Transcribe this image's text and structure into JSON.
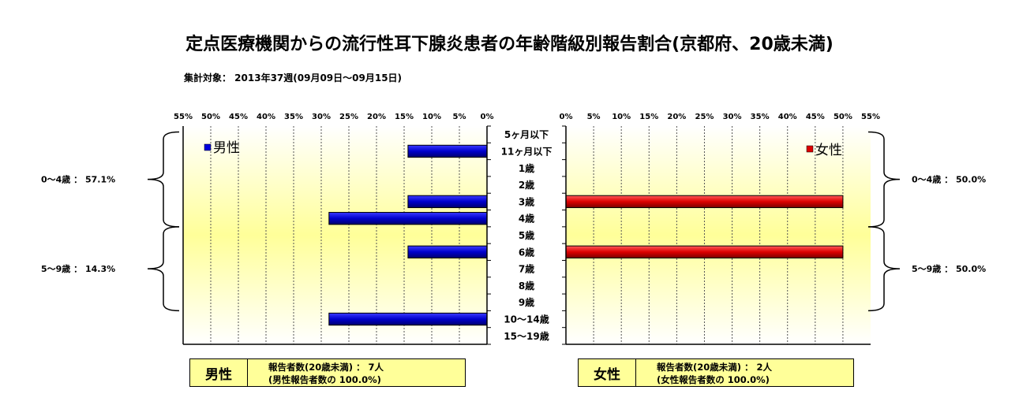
{
  "title": "定点医療機関からの流行性耳下腺炎患者の年齢階級別報告割合(京都府、20歳未満)",
  "subtitle": "集計対象： 2013年37週(09月09日～09月15日)",
  "chart_data": {
    "type": "bar",
    "orientation": "horizontal",
    "title": "定点医療機関からの流行性耳下腺炎患者の年齢階級別報告割合(京都府、20歳未満)",
    "subtitle": "集計対象： 2013年37週(09月09日～09月15日)",
    "categories": [
      "5ヶ月以下",
      "11ヶ月以下",
      "1歳",
      "2歳",
      "3歳",
      "4歳",
      "5歳",
      "6歳",
      "7歳",
      "8歳",
      "9歳",
      "10～14歳",
      "15～19歳"
    ],
    "xlim": [
      0,
      55
    ],
    "tick_labels": [
      "0%",
      "5%",
      "10%",
      "15%",
      "20%",
      "25%",
      "30%",
      "35%",
      "40%",
      "45%",
      "50%",
      "55%"
    ],
    "grid": true,
    "series": [
      {
        "name": "男性",
        "color": "#0000dd",
        "legend_position": "top-left",
        "values": [
          0,
          14.3,
          0,
          0,
          14.3,
          28.6,
          0,
          14.3,
          0,
          0,
          0,
          28.6,
          0
        ]
      },
      {
        "name": "女性",
        "color": "#dd0000",
        "legend_position": "top-right",
        "values": [
          0,
          0,
          0,
          0,
          50.0,
          0,
          0,
          50.0,
          0,
          0,
          0,
          0,
          0
        ]
      }
    ],
    "group_annotations": {
      "male": [
        "0～4歳 ： 57.1%",
        "5～9歳 ： 14.3%"
      ],
      "female": [
        "0～4歳 ： 50.0%",
        "5～9歳 ： 50.0%"
      ]
    }
  },
  "summary": {
    "male": {
      "label": "男性",
      "line1": "報告者数(20歳未満) ： 7人",
      "line2": "(男性報告者数の 100.0%)"
    },
    "female": {
      "label": "女性",
      "line1": "報告者数(20歳未満) ： 2人",
      "line2": "(女性報告者数の 100.0%)"
    }
  }
}
